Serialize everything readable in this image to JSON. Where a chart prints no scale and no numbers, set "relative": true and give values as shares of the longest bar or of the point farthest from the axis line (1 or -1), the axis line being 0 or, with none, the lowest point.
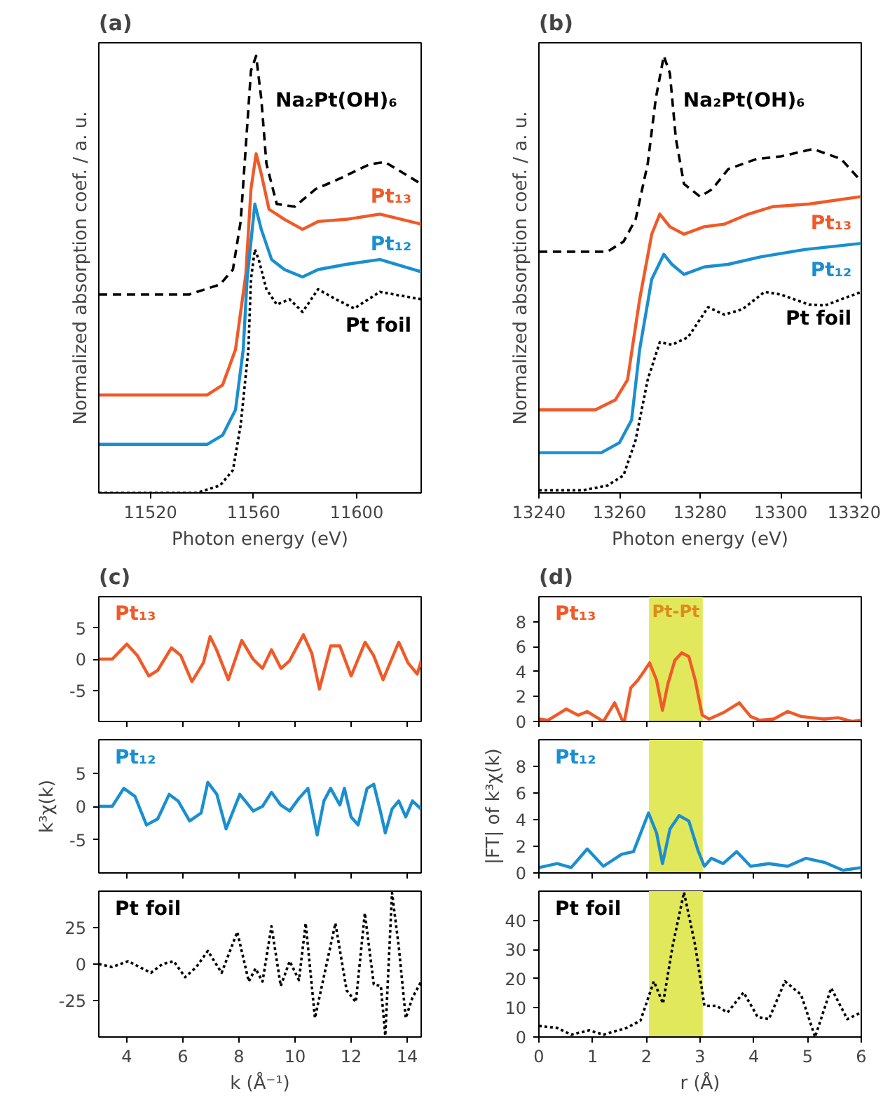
{
  "chart_data": [
    {
      "type": "line",
      "title": "(a)",
      "xlabel": "Photon energy (eV)",
      "ylabel": "Normalized absorption coef. / a. u.",
      "relative": true,
      "xlim": [
        11500,
        11625
      ],
      "xticks": [
        11520,
        11560,
        11600
      ],
      "series": [
        {
          "name": "Na₂Pt(OH)₆",
          "color": "#000000",
          "line_style": "dashed",
          "x": [
            11500,
            11535,
            11547,
            11552,
            11555,
            11557,
            11559,
            11561,
            11563,
            11565,
            11569,
            11576,
            11584,
            11593,
            11605,
            11611,
            11625
          ],
          "values": [
            0.454,
            0.454,
            0.477,
            0.511,
            0.621,
            0.793,
            0.966,
            1.0,
            0.902,
            0.753,
            0.661,
            0.655,
            0.695,
            0.718,
            0.752,
            0.757,
            0.707
          ]
        },
        {
          "name": "Pt₁₃",
          "color": "#f05a28",
          "x": [
            11500,
            11542,
            11548,
            11553,
            11557,
            11559,
            11561,
            11563,
            11566,
            11572,
            11579,
            11585,
            11596,
            11609,
            11625
          ],
          "values": [
            0.224,
            0.224,
            0.247,
            0.328,
            0.5,
            0.695,
            0.776,
            0.73,
            0.649,
            0.626,
            0.603,
            0.621,
            0.626,
            0.638,
            0.615
          ]
        },
        {
          "name": "Pt₁₂",
          "color": "#1a8fd0",
          "x": [
            11500,
            11542,
            11548,
            11553,
            11556,
            11557.5,
            11560.5,
            11563,
            11567,
            11572,
            11579,
            11585,
            11596,
            11609,
            11625
          ],
          "values": [
            0.111,
            0.111,
            0.132,
            0.19,
            0.328,
            0.489,
            0.661,
            0.603,
            0.534,
            0.511,
            0.494,
            0.511,
            0.523,
            0.534,
            0.506
          ]
        },
        {
          "name": "Pt foil",
          "color": "#000000",
          "line_style": "dotted",
          "x": [
            11500,
            11538,
            11547,
            11552,
            11555,
            11558,
            11559,
            11560.5,
            11562,
            11565,
            11569,
            11574,
            11579,
            11585,
            11592,
            11599,
            11609,
            11625
          ],
          "values": [
            0,
            0,
            0.017,
            0.052,
            0.155,
            0.328,
            0.489,
            0.557,
            0.534,
            0.466,
            0.431,
            0.443,
            0.414,
            0.466,
            0.443,
            0.422,
            0.46,
            0.443
          ]
        }
      ]
    },
    {
      "type": "line",
      "title": "(b)",
      "xlabel": "Photon energy (eV)",
      "ylabel": "Normalized absorption coef. / a. u.",
      "relative": true,
      "xlim": [
        13240,
        13320
      ],
      "xticks": [
        13240,
        13260,
        13280,
        13300,
        13320
      ],
      "series": [
        {
          "name": "Na₂Pt(OH)₆",
          "color": "#000000",
          "line_style": "dashed",
          "x": [
            13240,
            13257,
            13261,
            13264,
            13267,
            13269,
            13271,
            13272.5,
            13274,
            13276,
            13280,
            13283,
            13287,
            13294,
            13300,
            13308,
            13315,
            13320
          ],
          "values": [
            0.552,
            0.552,
            0.575,
            0.626,
            0.753,
            0.902,
            1.0,
            0.96,
            0.81,
            0.707,
            0.678,
            0.695,
            0.741,
            0.764,
            0.77,
            0.787,
            0.764,
            0.713
          ]
        },
        {
          "name": "Pt₁₃",
          "color": "#f05a28",
          "x": [
            13240,
            13254,
            13259,
            13262,
            13265,
            13268,
            13270,
            13272.5,
            13276,
            13281,
            13286,
            13292,
            13298,
            13307,
            13320
          ],
          "values": [
            0.19,
            0.19,
            0.213,
            0.259,
            0.443,
            0.592,
            0.638,
            0.609,
            0.592,
            0.609,
            0.615,
            0.638,
            0.655,
            0.661,
            0.678
          ]
        },
        {
          "name": "Pt₁₂",
          "color": "#1a8fd0",
          "x": [
            13240,
            13255.5,
            13260,
            13263,
            13265,
            13268,
            13271,
            13273,
            13276,
            13281,
            13287,
            13295,
            13306,
            13320
          ],
          "values": [
            0.092,
            0.092,
            0.115,
            0.167,
            0.328,
            0.489,
            0.546,
            0.523,
            0.5,
            0.517,
            0.523,
            0.54,
            0.557,
            0.571
          ]
        },
        {
          "name": "Pt foil",
          "color": "#000000",
          "line_style": "dotted",
          "x": [
            13240,
            13251,
            13257,
            13261,
            13264,
            13267,
            13270,
            13273,
            13277,
            13282,
            13286,
            13290.5,
            13296,
            13300,
            13307,
            13311,
            13320
          ],
          "values": [
            0.006,
            0.006,
            0.017,
            0.04,
            0.121,
            0.259,
            0.345,
            0.339,
            0.356,
            0.425,
            0.408,
            0.42,
            0.46,
            0.454,
            0.431,
            0.429,
            0.46
          ]
        }
      ]
    },
    {
      "type": "line",
      "title": "(c)",
      "xlim": [
        3,
        14.5
      ],
      "xticks": [
        4,
        6,
        8,
        10,
        12,
        14
      ],
      "ylim": [
        -10,
        10
      ],
      "yticks": [
        -5,
        0,
        5
      ],
      "tick_labels": "y",
      "series": [
        {
          "name": "Pt₁₃",
          "color": "#f05a28",
          "x": [
            3.0,
            3.48,
            4.0,
            4.37,
            4.78,
            5.1,
            5.59,
            5.92,
            6.32,
            6.73,
            6.97,
            7.2,
            7.62,
            8.1,
            8.5,
            8.84,
            9.16,
            9.5,
            9.8,
            10.3,
            10.6,
            10.87,
            11.27,
            11.6,
            12.0,
            12.5,
            12.8,
            13.14,
            13.7,
            14.03,
            14.36,
            14.5
          ],
          "values": [
            0,
            0,
            2.4,
            0.6,
            -2.7,
            -1.8,
            1.8,
            0.6,
            -3.6,
            -0.6,
            3.6,
            1.5,
            -3.3,
            3.0,
            0,
            -1.5,
            1.5,
            -1.5,
            -0.3,
            3.9,
            0.9,
            -4.8,
            2.1,
            2.1,
            -2.7,
            2.7,
            0.6,
            -3.3,
            2.7,
            -0.6,
            -2.4,
            -0.3
          ]
        }
      ]
    },
    {
      "type": "line",
      "ylabel": "k³χ(k)",
      "xlim": [
        3,
        14.5
      ],
      "xticks": [
        4,
        6,
        8,
        10,
        12,
        14
      ],
      "ylim": [
        -10,
        10
      ],
      "yticks": [
        -5,
        0,
        5
      ],
      "tick_labels": "y",
      "series": [
        {
          "name": "Pt₁₂",
          "color": "#1a8fd0",
          "x": [
            3.0,
            3.48,
            3.89,
            4.29,
            4.7,
            5.1,
            5.51,
            5.83,
            6.24,
            6.65,
            6.89,
            7.21,
            7.54,
            8.03,
            8.51,
            8.84,
            9.16,
            9.49,
            9.81,
            10.14,
            10.46,
            10.79,
            11.03,
            11.27,
            11.6,
            11.76,
            12.0,
            12.25,
            12.57,
            12.81,
            13.06,
            13.22,
            13.46,
            13.7,
            13.95,
            14.19,
            14.5
          ],
          "values": [
            0,
            0,
            2.7,
            1.5,
            -2.8,
            -1.9,
            1.8,
            0.8,
            -2.2,
            -1.0,
            3.6,
            1.8,
            -3.4,
            1.8,
            -0.7,
            0,
            2.1,
            0.2,
            -0.7,
            1.2,
            2.7,
            -4.3,
            0.8,
            2.7,
            0.2,
            2.7,
            -1.6,
            -2.8,
            2.7,
            3.3,
            -1.0,
            -4.0,
            -0.4,
            0.8,
            -1.6,
            0.8,
            -0.4
          ]
        }
      ]
    },
    {
      "type": "line",
      "xlabel": "k (Å⁻¹)",
      "xlim": [
        3,
        14.5
      ],
      "xticks": [
        4,
        6,
        8,
        10,
        12,
        14
      ],
      "ylim": [
        -50,
        50
      ],
      "yticks": [
        -25,
        0,
        25
      ],
      "series": [
        {
          "name": "Pt foil",
          "color": "#000000",
          "line_style": "dotted",
          "x": [
            3.0,
            3.48,
            4.05,
            4.45,
            4.86,
            5.27,
            5.67,
            6.08,
            6.48,
            6.89,
            7.38,
            7.94,
            8.35,
            8.59,
            8.84,
            9.16,
            9.49,
            9.81,
            10.14,
            10.38,
            10.71,
            11.44,
            11.84,
            12.17,
            12.49,
            12.81,
            13.06,
            13.22,
            13.46,
            13.7,
            13.95,
            14.19,
            14.5
          ],
          "values": [
            0,
            -2,
            2,
            -2,
            -6,
            0,
            2,
            -9,
            -2,
            9,
            -6,
            22,
            -12,
            -3,
            -12,
            26,
            -15,
            2,
            -11,
            28,
            -37,
            28,
            -18,
            -26,
            35,
            -14,
            -15,
            -49,
            49,
            12,
            -37,
            -23,
            -12
          ]
        }
      ]
    },
    {
      "type": "line",
      "title": "(d)",
      "xlim": [
        0,
        6
      ],
      "xticks": [
        0,
        1,
        2,
        3,
        4,
        5,
        6
      ],
      "ylim": [
        0,
        10
      ],
      "yticks": [
        0,
        2,
        4,
        6,
        8
      ],
      "tick_labels": "y",
      "bands": [
        {
          "axis": "x",
          "from": 2.05,
          "to": 3.05,
          "label": "Pt-Pt",
          "color": "#e2e85c"
        }
      ],
      "series": [
        {
          "name": "Pt₁₃",
          "color": "#f05a28",
          "x": [
            0,
            0.17,
            0.51,
            0.73,
            0.9,
            1.2,
            1.41,
            1.54,
            1.59,
            1.71,
            1.84,
            1.97,
            2.06,
            2.19,
            2.3,
            2.4,
            2.53,
            2.66,
            2.79,
            2.91,
            3.04,
            3.17,
            3.43,
            3.73,
            3.94,
            4.11,
            4.37,
            4.63,
            4.88,
            5.31,
            5.57,
            5.83,
            6
          ],
          "values": [
            0.2,
            0.1,
            1.0,
            0.5,
            0.8,
            0,
            1.5,
            0.2,
            0,
            2.7,
            3.3,
            4.1,
            4.7,
            3.3,
            0.9,
            3.0,
            4.9,
            5.5,
            5.2,
            3.3,
            0.5,
            0.2,
            0.7,
            1.5,
            0.4,
            0.1,
            0.2,
            0.8,
            0.4,
            0.2,
            0.3,
            0,
            0.1
          ]
        }
      ]
    },
    {
      "type": "line",
      "ylabel": "|FT| of k³χ(k)",
      "xlim": [
        0,
        6
      ],
      "xticks": [
        0,
        1,
        2,
        3,
        4,
        5,
        6
      ],
      "ylim": [
        0,
        10
      ],
      "yticks": [
        0,
        2,
        4,
        6,
        8
      ],
      "tick_labels": "y",
      "bands": [
        {
          "axis": "x",
          "from": 2.05,
          "to": 3.05,
          "color": "#e2e85c"
        }
      ],
      "series": [
        {
          "name": "Pt₁₂",
          "color": "#1a8fd0",
          "x": [
            0,
            0.34,
            0.6,
            0.9,
            1.2,
            1.54,
            1.76,
            2.04,
            2.19,
            2.3,
            2.44,
            2.61,
            2.79,
            2.96,
            3.08,
            3.21,
            3.43,
            3.68,
            3.94,
            4.28,
            4.63,
            4.97,
            5.31,
            5.66,
            6
          ],
          "values": [
            0.4,
            0.7,
            0.4,
            1.8,
            0.5,
            1.4,
            1.6,
            4.5,
            3.0,
            0.7,
            3.3,
            4.3,
            3.9,
            1.7,
            0.5,
            1.1,
            0.7,
            1.6,
            0.5,
            0.7,
            0.5,
            1.1,
            0.8,
            0.2,
            0.4
          ]
        }
      ]
    },
    {
      "type": "line",
      "xlabel": "r (Å)",
      "xlim": [
        0,
        6
      ],
      "xticks": [
        0,
        1,
        2,
        3,
        4,
        5,
        6
      ],
      "ylim": [
        0,
        50
      ],
      "yticks": [
        0,
        10,
        20,
        30,
        40
      ],
      "bands": [
        {
          "axis": "x",
          "from": 2.05,
          "to": 3.05,
          "color": "#e2e85c"
        }
      ],
      "series": [
        {
          "name": "Pt foil",
          "color": "#000000",
          "line_style": "dotted",
          "x": [
            0,
            0.34,
            0.6,
            0.94,
            1.2,
            1.63,
            1.89,
            2.14,
            2.31,
            2.49,
            2.7,
            2.91,
            3.08,
            3.3,
            3.51,
            3.81,
            4.07,
            4.28,
            4.58,
            4.88,
            5.14,
            5.44,
            5.74,
            6
          ],
          "values": [
            3.8,
            3.1,
            0.8,
            2.3,
            0.8,
            3.1,
            5.6,
            19.1,
            11.5,
            31.3,
            49.6,
            31.3,
            10.7,
            10.7,
            8.4,
            15.3,
            6.9,
            6.1,
            19.1,
            14.5,
            0,
            16.8,
            6.1,
            8.4
          ]
        }
      ]
    }
  ]
}
